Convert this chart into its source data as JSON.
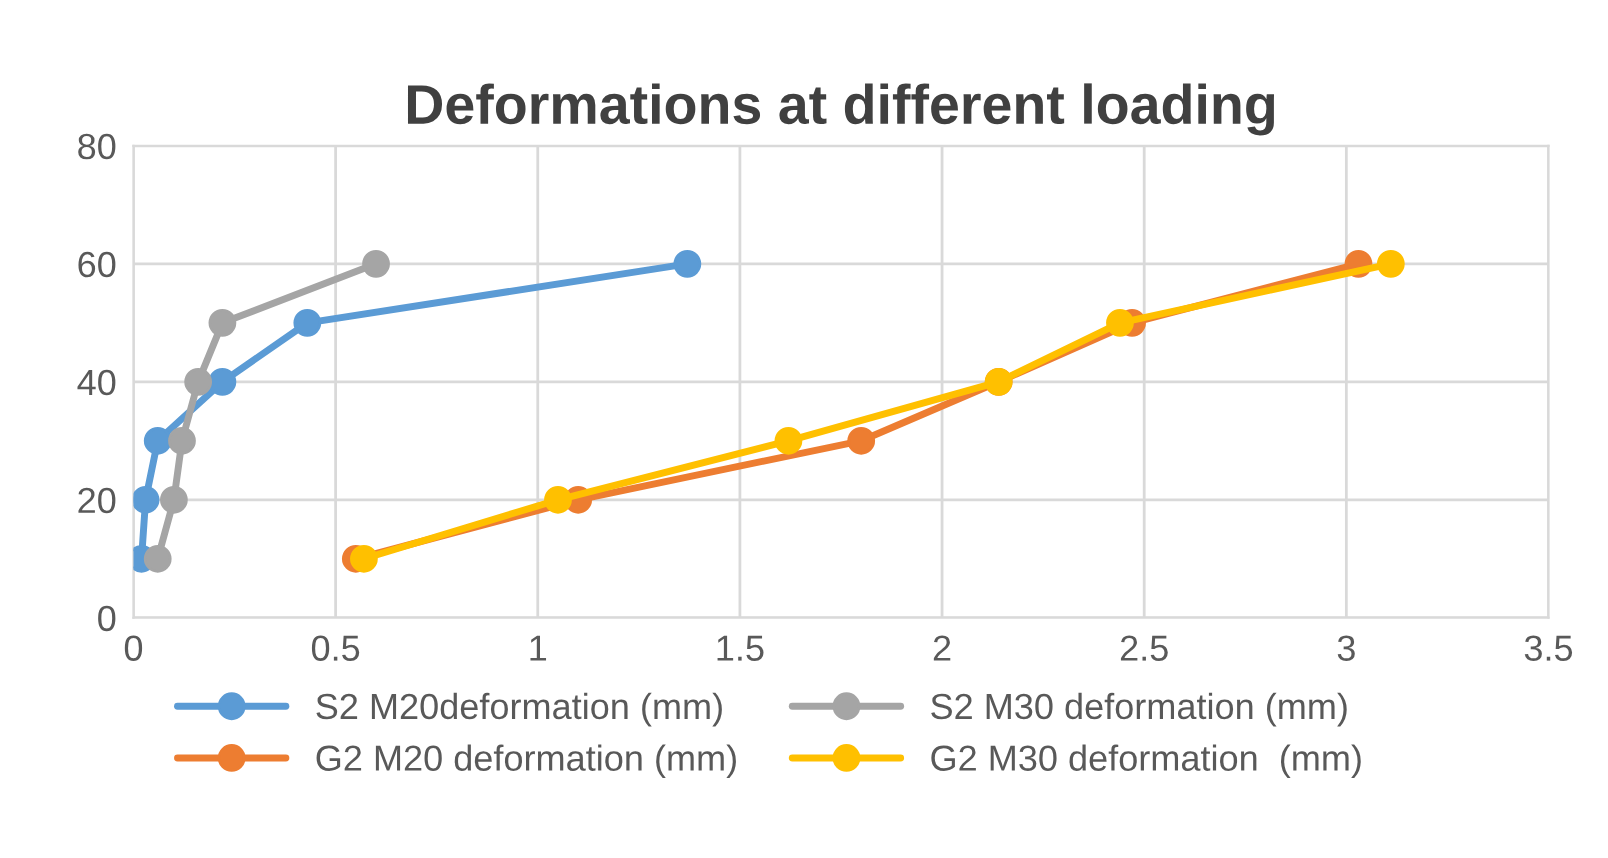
{
  "chart_data": {
    "type": "line",
    "title": "Deformations at different loading",
    "xlim": [
      0,
      3.5
    ],
    "xticks": [
      0,
      0.5,
      1,
      1.5,
      2,
      2.5,
      3,
      3.5
    ],
    "ylim": [
      0,
      80
    ],
    "yticks": [
      0,
      20,
      40,
      60,
      80
    ],
    "grid": true,
    "legend": "bottom",
    "marker": "circle",
    "line_style": "solid",
    "series": [
      {
        "name": "S2 M20deformation (mm)",
        "color": "#5b9bd5",
        "x": [
          0.02,
          0.03,
          0.06,
          0.22,
          0.43,
          1.37
        ],
        "values": [
          10,
          20,
          30,
          40,
          50,
          60
        ]
      },
      {
        "name": "G2 M20 deformation (mm)",
        "color": "#ed7d31",
        "x": [
          0.55,
          1.1,
          1.8,
          2.14,
          2.47,
          3.03
        ],
        "values": [
          10,
          20,
          30,
          40,
          50,
          60
        ]
      },
      {
        "name": "S2 M30 deformation (mm)",
        "color": "#a5a5a5",
        "x": [
          0.06,
          0.1,
          0.12,
          0.16,
          0.22,
          0.6
        ],
        "values": [
          10,
          20,
          30,
          40,
          50,
          60
        ]
      },
      {
        "name": "G2 M30 deformation  (mm)",
        "color": "#ffc000",
        "x": [
          0.57,
          1.05,
          1.62,
          2.14,
          2.44,
          3.11
        ],
        "values": [
          10,
          20,
          30,
          40,
          50,
          60
        ]
      }
    ]
  }
}
